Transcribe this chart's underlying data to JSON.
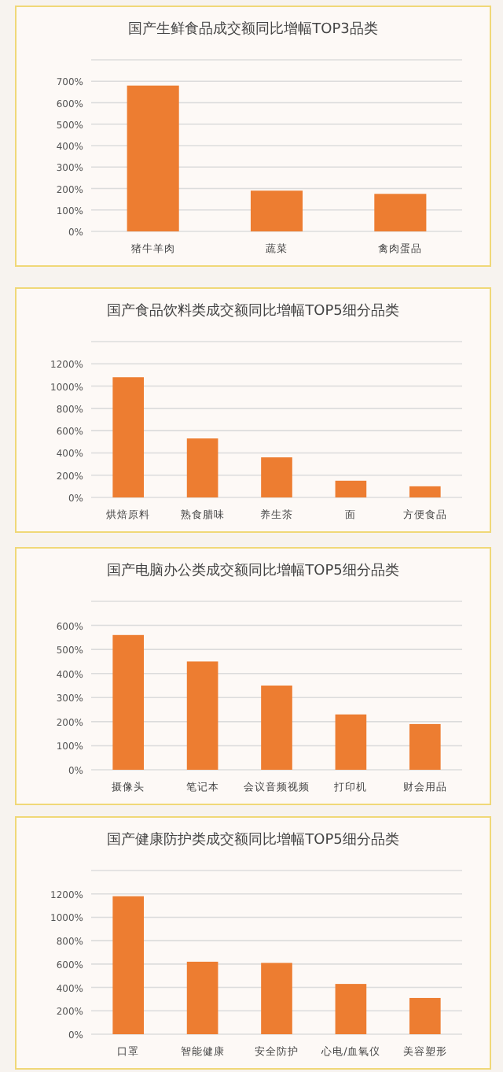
{
  "chart_data": [
    {
      "type": "bar",
      "title": "国产生鲜食品成交额同比增幅TOP3品类",
      "categories": [
        "猪牛羊肉",
        "蔬菜",
        "禽肉蛋品"
      ],
      "color": "#ed7d31",
      "values": [
        680,
        190,
        175
      ],
      "ylim": [
        0,
        800
      ],
      "yticks": [
        {
          "value": 0,
          "label": "0%"
        },
        {
          "value": 100,
          "label": "100%"
        },
        {
          "value": 200,
          "label": "200%"
        },
        {
          "value": 300,
          "label": "300%"
        },
        {
          "value": 400,
          "label": "400%"
        },
        {
          "value": 500,
          "label": "500%"
        },
        {
          "value": 600,
          "label": "600%"
        },
        {
          "value": 700,
          "label": "700%"
        },
        {
          "value": 800,
          "label": null
        }
      ],
      "grid": "y"
    },
    {
      "type": "bar",
      "title": "国产食品饮料类成交额同比增幅TOP5细分品类",
      "categories": [
        "烘焙原料",
        "熟食腊味",
        "养生茶",
        "面",
        "方便食品"
      ],
      "color": "#ed7d31",
      "values": [
        1080,
        530,
        360,
        150,
        100
      ],
      "ylim": [
        0,
        1400
      ],
      "yticks": [
        {
          "value": 0,
          "label": "0%"
        },
        {
          "value": 200,
          "label": "200%"
        },
        {
          "value": 400,
          "label": "400%"
        },
        {
          "value": 600,
          "label": "600%"
        },
        {
          "value": 800,
          "label": "800%"
        },
        {
          "value": 1000,
          "label": "1000%"
        },
        {
          "value": 1200,
          "label": "1200%"
        },
        {
          "value": 1400,
          "label": null
        }
      ],
      "grid": "y"
    },
    {
      "type": "bar",
      "title": "国产电脑办公类成交额同比增幅TOP5细分品类",
      "categories": [
        "摄像头",
        "笔记本",
        "会议音频视频",
        "打印机",
        "财会用品"
      ],
      "color": "#ed7d31",
      "values": [
        560,
        450,
        350,
        230,
        190
      ],
      "ylim": [
        0,
        700
      ],
      "yticks": [
        {
          "value": 0,
          "label": "0%"
        },
        {
          "value": 100,
          "label": "100%"
        },
        {
          "value": 200,
          "label": "200%"
        },
        {
          "value": 300,
          "label": "300%"
        },
        {
          "value": 400,
          "label": "400%"
        },
        {
          "value": 500,
          "label": "500%"
        },
        {
          "value": 600,
          "label": "600%"
        },
        {
          "value": 700,
          "label": null
        }
      ],
      "grid": "y"
    },
    {
      "type": "bar",
      "title": "国产健康防护类成交额同比增幅TOP5细分品类",
      "categories": [
        "口罩",
        "智能健康",
        "安全防护",
        "心电/血氧仪",
        "美容塑形"
      ],
      "color": "#ed7d31",
      "values": [
        1180,
        620,
        610,
        430,
        310
      ],
      "ylim": [
        0,
        1400
      ],
      "yticks": [
        {
          "value": 0,
          "label": "0%"
        },
        {
          "value": 200,
          "label": "200%"
        },
        {
          "value": 400,
          "label": "400%"
        },
        {
          "value": 600,
          "label": "600%"
        },
        {
          "value": 800,
          "label": "800%"
        },
        {
          "value": 1000,
          "label": "1000%"
        },
        {
          "value": 1200,
          "label": "1200%"
        },
        {
          "value": 1400,
          "label": null
        }
      ],
      "grid": "y"
    }
  ]
}
